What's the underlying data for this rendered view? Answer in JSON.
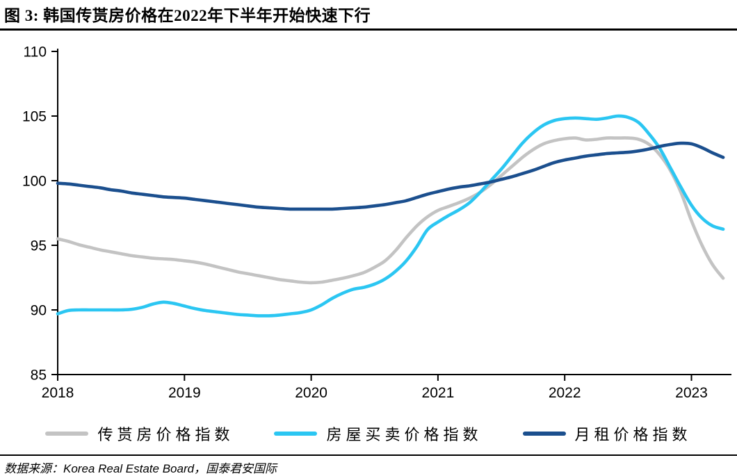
{
  "title": "图 3:  韩国传贳房价格在2022年下半年开始快速下行",
  "source_note": "数据来源：Korea Real Estate Board，国泰君安国际",
  "colors": {
    "jeonse": "#C3C3C3",
    "sale": "#2BC6F2",
    "rent": "#1B4F8E",
    "axis": "#000000"
  },
  "chart_data": {
    "type": "line",
    "title": "韩国传贳房价格在2022年下半年开始快速下行",
    "x_start": "2018-01",
    "x_frequency": "monthly",
    "x_tick_labels": [
      "2018",
      "2019",
      "2020",
      "2021",
      "2022",
      "2023"
    ],
    "y_ticks": [
      85,
      90,
      95,
      100,
      105,
      110
    ],
    "ylim": [
      85,
      110
    ],
    "grid": false,
    "legend_position": "bottom",
    "series": [
      {
        "name": "传贳房价格指数",
        "color_key": "jeonse",
        "values": [
          95.5,
          95.3,
          95.05,
          94.85,
          94.65,
          94.5,
          94.35,
          94.2,
          94.1,
          94.0,
          93.95,
          93.9,
          93.8,
          93.7,
          93.55,
          93.35,
          93.15,
          92.95,
          92.8,
          92.65,
          92.5,
          92.35,
          92.25,
          92.15,
          92.1,
          92.15,
          92.3,
          92.45,
          92.65,
          92.9,
          93.3,
          93.8,
          94.6,
          95.6,
          96.5,
          97.2,
          97.7,
          98.0,
          98.3,
          98.65,
          99.1,
          99.7,
          100.4,
          101.1,
          101.8,
          102.4,
          102.85,
          103.1,
          103.25,
          103.3,
          103.15,
          103.2,
          103.3,
          103.3,
          103.3,
          103.2,
          102.8,
          102.0,
          100.8,
          99.1,
          96.9,
          95.0,
          93.5,
          92.45
        ]
      },
      {
        "name": "房屋买卖价格指数",
        "color_key": "sale",
        "values": [
          89.7,
          89.95,
          90.0,
          90.0,
          90.0,
          90.0,
          90.0,
          90.05,
          90.2,
          90.45,
          90.6,
          90.5,
          90.3,
          90.1,
          89.95,
          89.85,
          89.75,
          89.65,
          89.6,
          89.55,
          89.55,
          89.6,
          89.7,
          89.8,
          90.0,
          90.4,
          90.9,
          91.3,
          91.6,
          91.75,
          92.0,
          92.4,
          93.0,
          93.8,
          94.9,
          96.2,
          96.8,
          97.3,
          97.75,
          98.3,
          99.1,
          100.0,
          100.9,
          101.9,
          102.9,
          103.7,
          104.3,
          104.65,
          104.8,
          104.85,
          104.8,
          104.75,
          104.85,
          105.0,
          104.9,
          104.5,
          103.6,
          102.5,
          101.0,
          99.5,
          98.1,
          97.1,
          96.5,
          96.25
        ]
      },
      {
        "name": "月租价格指数",
        "color_key": "rent",
        "values": [
          99.8,
          99.75,
          99.65,
          99.55,
          99.45,
          99.3,
          99.2,
          99.05,
          98.95,
          98.85,
          98.75,
          98.7,
          98.65,
          98.55,
          98.45,
          98.35,
          98.25,
          98.15,
          98.05,
          97.95,
          97.9,
          97.85,
          97.8,
          97.8,
          97.8,
          97.8,
          97.8,
          97.85,
          97.9,
          97.95,
          98.05,
          98.15,
          98.3,
          98.45,
          98.7,
          98.95,
          99.15,
          99.35,
          99.5,
          99.6,
          99.75,
          99.9,
          100.1,
          100.3,
          100.55,
          100.8,
          101.1,
          101.4,
          101.6,
          101.75,
          101.9,
          102.0,
          102.1,
          102.15,
          102.2,
          102.3,
          102.45,
          102.65,
          102.8,
          102.9,
          102.85,
          102.55,
          102.15,
          101.8
        ]
      }
    ]
  },
  "legend": {
    "items": [
      {
        "label": "传贳房价格指数"
      },
      {
        "label": "房屋买卖价格指数"
      },
      {
        "label": "月租价格指数"
      }
    ]
  }
}
